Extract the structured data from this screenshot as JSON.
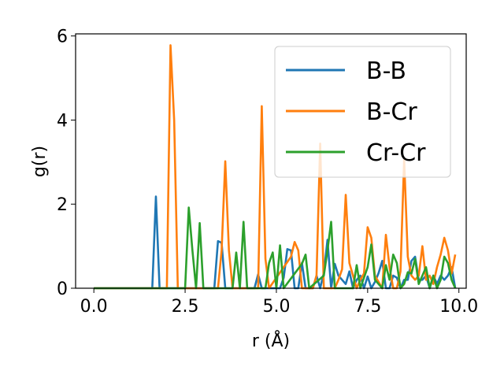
{
  "chart_data": {
    "type": "line",
    "xlabel": "r (Å)",
    "ylabel": "g(r)",
    "xlim": [
      -0.5,
      10.2
    ],
    "ylim": [
      0,
      6.05
    ],
    "xticks": [
      0.0,
      2.5,
      5.0,
      7.5,
      10.0
    ],
    "xtick_labels": [
      "0.0",
      "2.5",
      "5.0",
      "7.5",
      "10.0"
    ],
    "yticks": [
      0,
      2,
      4,
      6
    ],
    "ytick_labels": [
      "0",
      "2",
      "4",
      "6"
    ],
    "grid": false,
    "legend_position": "top-right",
    "series": [
      {
        "name": "B-B",
        "color": "#1f77b4",
        "x": [
          0.0,
          1.6,
          1.7,
          1.8,
          1.9,
          3.3,
          3.4,
          3.5,
          3.6,
          3.7,
          3.8,
          4.4,
          4.5,
          4.6,
          4.7,
          5.1,
          5.2,
          5.3,
          5.4,
          5.5,
          5.6,
          5.7,
          5.8,
          5.9,
          6.0,
          6.1,
          6.2,
          6.3,
          6.4,
          6.5,
          6.6,
          6.7,
          6.8,
          6.9,
          7.0,
          7.1,
          7.2,
          7.3,
          7.4,
          7.5,
          7.6,
          7.7,
          7.8,
          7.9,
          8.0,
          8.1,
          8.2,
          8.3,
          8.4,
          8.5,
          8.6,
          8.7,
          8.8,
          8.9,
          9.0,
          9.1,
          9.2,
          9.3,
          9.4,
          9.5,
          9.6,
          9.7,
          9.8,
          9.9
        ],
        "y": [
          0,
          0,
          2.18,
          0,
          0,
          0,
          1.12,
          1.08,
          0,
          0,
          0,
          0,
          0.33,
          0,
          0,
          0,
          0.25,
          0.93,
          0.9,
          0,
          0,
          0.6,
          0,
          0,
          0,
          0.3,
          0,
          0.37,
          1.15,
          0,
          0.58,
          0.3,
          0.2,
          0.1,
          0.4,
          0,
          0.2,
          0.3,
          0,
          0.28,
          0,
          0.15,
          0.36,
          0.65,
          0,
          0,
          0.3,
          0.25,
          0,
          0.2,
          0.2,
          0.65,
          0.75,
          0.2,
          0.2,
          0.3,
          0,
          0.3,
          0.1,
          0.3,
          0.2,
          0.3,
          0.5,
          0
        ]
      },
      {
        "name": "B-Cr",
        "color": "#ff7f0e",
        "x": [
          0.0,
          1.9,
          2.0,
          2.1,
          2.2,
          2.3,
          3.4,
          3.5,
          3.6,
          3.7,
          3.8,
          4.4,
          4.5,
          4.6,
          4.7,
          4.8,
          5.4,
          5.5,
          5.6,
          5.7,
          6.0,
          6.1,
          6.2,
          6.3,
          6.6,
          6.7,
          6.8,
          6.9,
          7.0,
          7.2,
          7.3,
          7.4,
          7.5,
          7.6,
          7.7,
          7.8,
          7.9,
          8.0,
          8.1,
          8.2,
          8.3,
          8.4,
          8.5,
          8.6,
          8.7,
          8.8,
          8.9,
          9.0,
          9.1,
          9.2,
          9.3,
          9.4,
          9.5,
          9.6,
          9.7,
          9.8,
          9.9
        ],
        "y": [
          0,
          0,
          0,
          5.78,
          4.0,
          0,
          0,
          0.9,
          3.02,
          0.9,
          0,
          0,
          0,
          4.33,
          0.7,
          0,
          0.75,
          1.1,
          0.9,
          0,
          0,
          0.3,
          3.44,
          0,
          0,
          0.2,
          0.45,
          2.22,
          0.6,
          0,
          0.2,
          0.35,
          1.45,
          1.2,
          0.3,
          0.15,
          0,
          1.27,
          0.5,
          0,
          0,
          0.4,
          3.06,
          0.75,
          0.3,
          0.2,
          0.3,
          1.0,
          0.2,
          0.3,
          0.1,
          0.5,
          0.8,
          1.2,
          0.9,
          0.35,
          0.8
        ]
      },
      {
        "name": "Cr-Cr",
        "color": "#2ca02c",
        "x": [
          0.0,
          2.5,
          2.6,
          2.7,
          2.8,
          2.9,
          3.0,
          3.8,
          3.9,
          4.0,
          4.1,
          4.2,
          4.7,
          4.8,
          4.9,
          5.0,
          5.1,
          5.2,
          5.7,
          5.8,
          5.9,
          6.3,
          6.4,
          6.5,
          6.6,
          7.1,
          7.2,
          7.3,
          7.5,
          7.6,
          7.7,
          7.9,
          8.0,
          8.1,
          8.2,
          8.3,
          8.4,
          8.5,
          8.6,
          8.7,
          8.8,
          8.9,
          9.0,
          9.1,
          9.2,
          9.3,
          9.4,
          9.5,
          9.6,
          9.7,
          9.8,
          9.9
        ],
        "y": [
          0,
          0,
          1.92,
          0.9,
          0,
          1.55,
          0,
          0,
          0.85,
          0,
          1.58,
          0,
          0,
          0.6,
          0.85,
          0,
          1.02,
          0,
          0.58,
          0.8,
          0,
          0.3,
          0.9,
          1.58,
          0,
          0,
          0.55,
          0,
          0.5,
          1.04,
          0.2,
          0,
          0.55,
          0.2,
          0.8,
          0.6,
          0,
          0.1,
          0.38,
          0.35,
          0.7,
          0.1,
          0.3,
          0.5,
          0,
          0.3,
          0,
          0.2,
          0.75,
          0.6,
          0.2,
          0
        ]
      }
    ]
  }
}
